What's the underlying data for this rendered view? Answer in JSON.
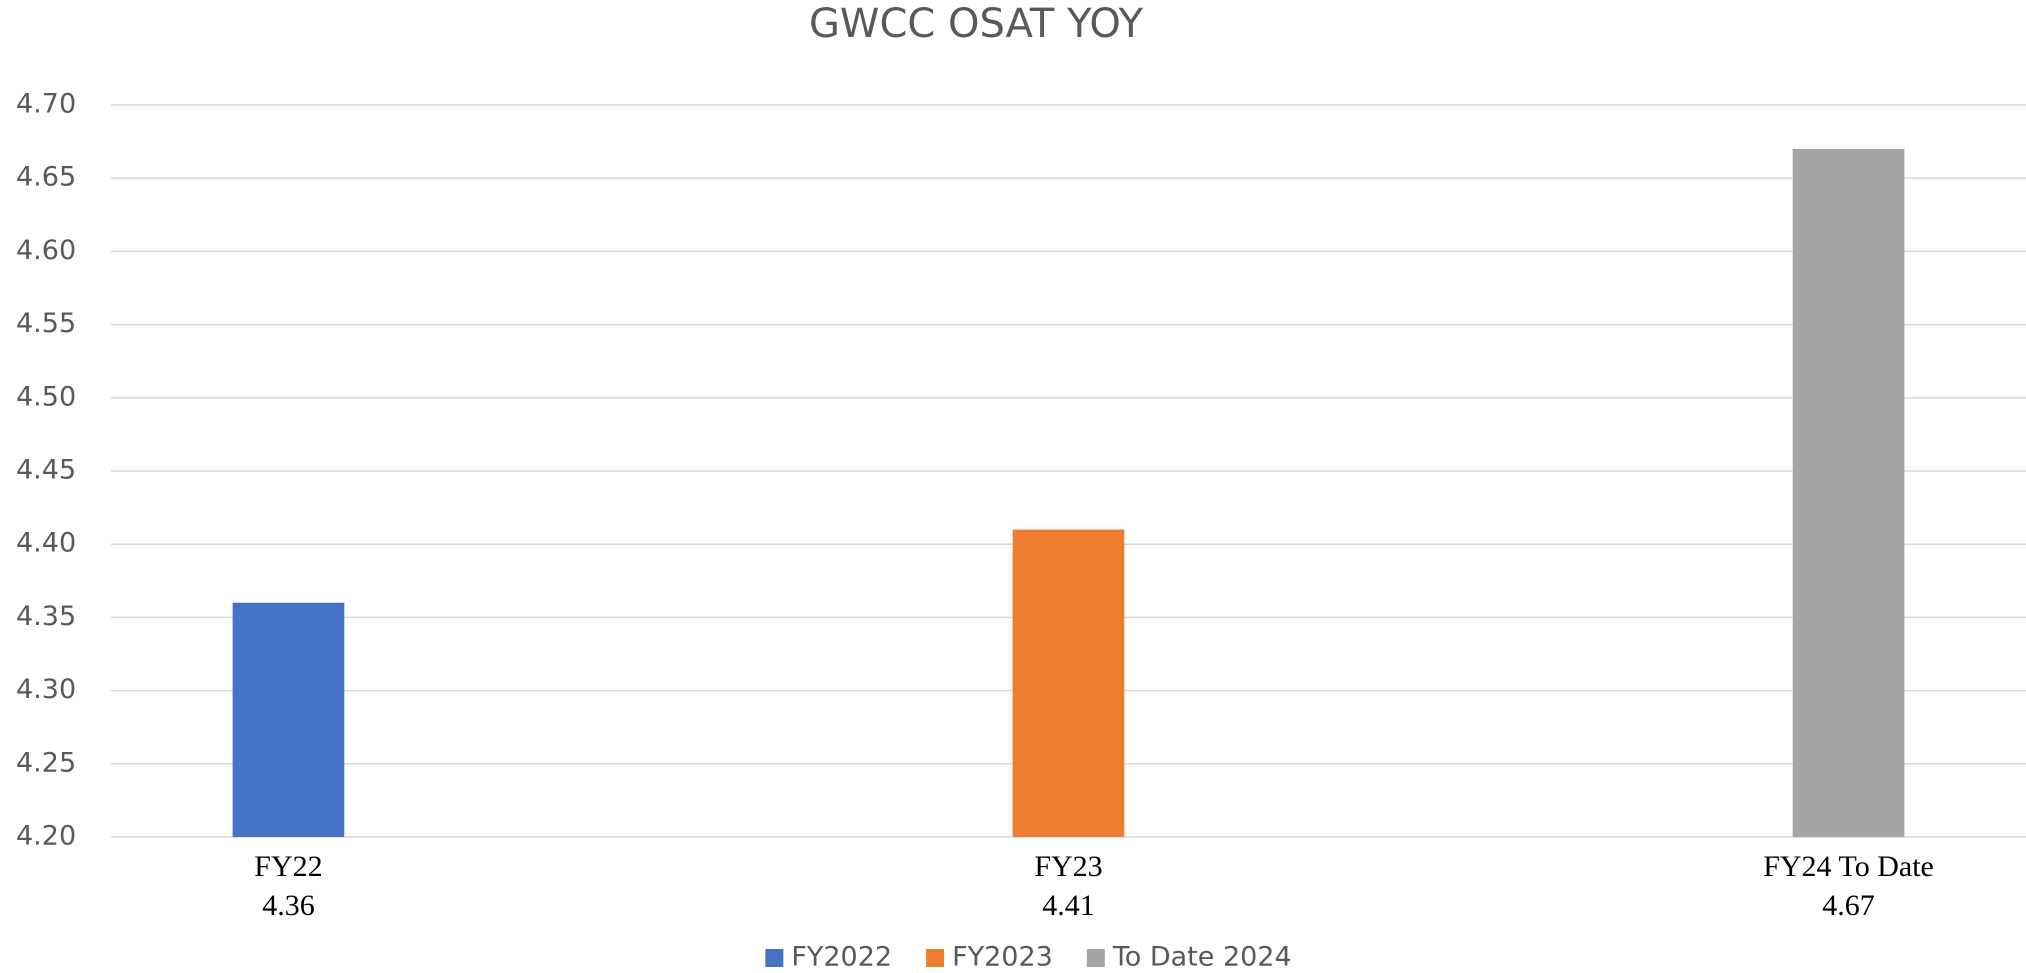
{
  "chart_data": {
    "type": "bar",
    "title": "GWCC OSAT YOY",
    "categories": [
      "FY22",
      "FY23",
      "FY24 To Date"
    ],
    "series": [
      {
        "name": "FY2022",
        "color": "#4472c4",
        "values": [
          4.36,
          null,
          null
        ]
      },
      {
        "name": "FY2023",
        "color": "#ed7d31",
        "values": [
          null,
          4.41,
          null
        ]
      },
      {
        "name": "To Date 2024",
        "color": "#a5a5a5",
        "values": [
          null,
          null,
          4.67
        ]
      }
    ],
    "ylim": [
      4.2,
      4.7
    ],
    "yticks": [
      {
        "value": 4.2,
        "label": "4.20"
      },
      4.25,
      {
        "value": 4.3,
        "label": "4.30"
      },
      4.35,
      {
        "value": 4.4,
        "label": "4.40"
      },
      4.45,
      {
        "value": 4.5,
        "label": "4.50"
      },
      4.55,
      {
        "value": 4.6,
        "label": "4.60"
      },
      4.65,
      {
        "value": 4.7,
        "label": "4.70"
      }
    ],
    "grid": true,
    "legend": "bottom"
  }
}
